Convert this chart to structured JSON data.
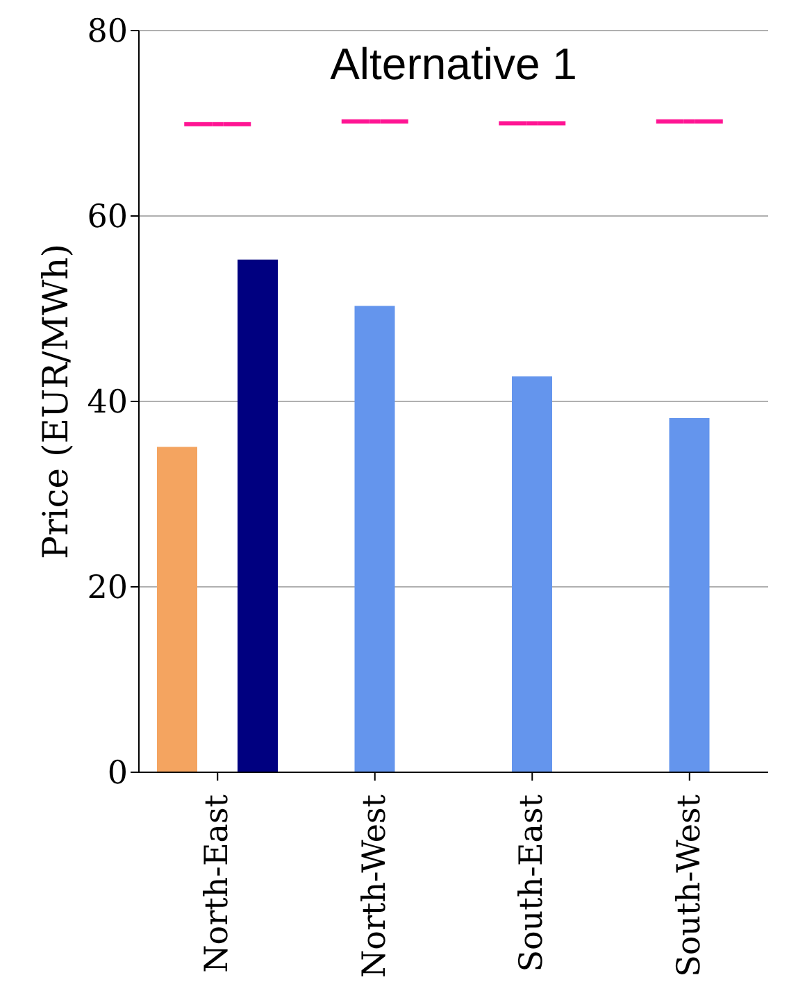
{
  "chart_data": {
    "type": "bar",
    "title": "Alternative 1",
    "ylabel": "Price (EUR/MWh)",
    "categories": [
      "North-East",
      "North-West",
      "South-East",
      "South-West"
    ],
    "series": [
      {
        "type": "bar",
        "color": "#f4a460",
        "values": [
          35.1,
          null,
          null,
          null
        ]
      },
      {
        "type": "bar",
        "color": "#6495ed",
        "values": [
          null,
          50.3,
          42.7,
          38.2
        ]
      },
      {
        "type": "bar",
        "color": "#000080",
        "values": [
          55.3,
          null,
          null,
          null
        ]
      },
      {
        "type": "scatter",
        "color": "#ff1493",
        "values": [
          69.9,
          70.2,
          70.0,
          70.2
        ]
      }
    ],
    "ylim": [
      0,
      80
    ],
    "yticks": [
      0,
      20,
      40,
      60,
      80
    ],
    "grid": "y",
    "legend": false
  }
}
